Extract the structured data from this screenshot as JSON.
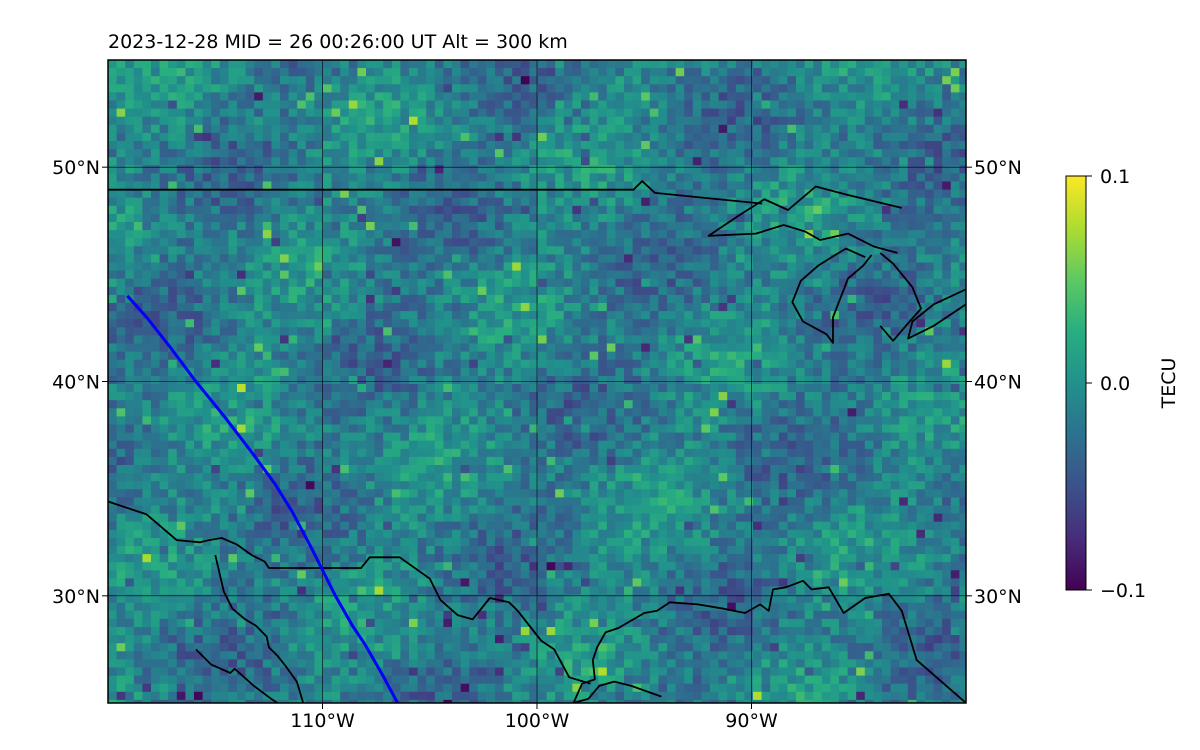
{
  "title": "2023-12-28  MID =  26    00:26:00  UT  Alt = 300 km",
  "colors": {
    "track": "#0000ff",
    "coastline": "#000000",
    "grid": "#000000",
    "cmap": [
      "#440154",
      "#472d7b",
      "#3b528b",
      "#2c728e",
      "#21918c",
      "#28ae80",
      "#5ec962",
      "#addc30",
      "#fde725"
    ]
  },
  "chart_data": {
    "type": "heatmap",
    "map_extent": {
      "lon": [
        -120,
        -80
      ],
      "lat": [
        25,
        55
      ]
    },
    "xticks": [
      {
        "value": -110,
        "label": "110°W"
      },
      {
        "value": -100,
        "label": "100°W"
      },
      {
        "value": -90,
        "label": "90°W"
      }
    ],
    "yticks": [
      {
        "value": 30,
        "label": "30°N"
      },
      {
        "value": 40,
        "label": "40°N"
      },
      {
        "value": 50,
        "label": "50°N"
      }
    ],
    "grid": true,
    "colorbar": {
      "label": "TECU",
      "range": [
        -0.1,
        0.1
      ],
      "ticks": [
        {
          "value": 0.1,
          "label": "0.1"
        },
        {
          "value": 0.0,
          "label": "0.0"
        },
        {
          "value": -0.1,
          "label": "−0.1"
        }
      ]
    },
    "track": {
      "lon": [
        -119.1,
        -118.2,
        -117.1,
        -115.9,
        -114.6,
        -113.3,
        -112.2,
        -111.4,
        -110.5,
        -109.4,
        -108.6,
        -108.0,
        -107.2,
        -106.5
      ],
      "lat": [
        44.0,
        43.0,
        41.6,
        40.0,
        38.4,
        36.7,
        35.2,
        33.9,
        32.2,
        30.0,
        28.6,
        27.7,
        26.3,
        25.0
      ]
    },
    "coastlines": [
      {
        "lon": [
          -120,
          -95.5,
          -95.1,
          -94.5,
          -89.5
        ],
        "lat": [
          48.95,
          48.95,
          49.35,
          48.8,
          48.3
        ]
      },
      {
        "lon": [
          -83.0,
          -85.5,
          -87.0,
          -88.3,
          -89.4,
          -90.5,
          -92.0,
          -89.8,
          -88.5,
          -87.5,
          -86.8,
          -85.5,
          -84.3,
          -83.2
        ],
        "lat": [
          48.1,
          48.7,
          49.1,
          48.0,
          48.5,
          47.8,
          46.8,
          46.9,
          47.3,
          47.0,
          46.6,
          46.9,
          46.3,
          46.0
        ]
      },
      {
        "lon": [
          -84.7,
          -85.6,
          -86.1,
          -86.9,
          -87.7,
          -88.1,
          -87.6,
          -86.5,
          -86.2,
          -86.2,
          -85.5,
          -84.8,
          -84.4
        ],
        "lat": [
          45.8,
          46.2,
          45.9,
          45.4,
          44.7,
          43.7,
          42.8,
          42.2,
          41.8,
          43.0,
          44.8,
          45.4,
          45.9
        ]
      },
      {
        "lon": [
          -84.0,
          -83.4,
          -82.5,
          -82.1,
          -82.8,
          -83.4,
          -84.0
        ],
        "lat": [
          46.0,
          45.5,
          44.4,
          43.4,
          42.6,
          41.9,
          42.6
        ]
      },
      {
        "lon": [
          -80.0,
          -81.5,
          -82.7,
          -82.5,
          -81.5,
          -80.0
        ],
        "lat": [
          43.6,
          42.6,
          42.0,
          42.8,
          43.6,
          44.3
        ]
      },
      {
        "lon": [
          -80.0,
          -82.3,
          -83.0,
          -83.6,
          -84.7,
          -85.7,
          -86.4,
          -87.2,
          -87.6,
          -88.4,
          -89.0,
          -89.2,
          -89.6,
          -90.3,
          -91.3,
          -92.5,
          -93.8,
          -94.4,
          -95.0,
          -96.2,
          -96.8,
          -97.2,
          -97.4,
          -97.3,
          -97.9,
          -98.3,
          -97.6,
          -97.1,
          -96.4,
          -95.6,
          -94.2
        ],
        "lat": [
          25.0,
          27.0,
          29.3,
          30.1,
          29.9,
          29.2,
          30.4,
          30.3,
          30.7,
          30.4,
          30.3,
          29.3,
          29.6,
          29.2,
          29.4,
          29.6,
          29.7,
          29.3,
          29.2,
          28.5,
          28.3,
          27.6,
          27.0,
          26.1,
          25.9,
          25.0,
          25.2,
          25.8,
          26.0,
          25.8,
          25.3
        ]
      },
      {
        "lon": [
          -120,
          -118.2,
          -116.8,
          -115.7,
          -115.3,
          -114.7,
          -114.0,
          -113.3,
          -112.7,
          -112.5,
          -111.9,
          -111.0,
          -109.9,
          -109.1,
          -108.2,
          -107.8,
          -107.4,
          -106.4,
          -105.0,
          -104.5,
          -103.7,
          -103.0,
          -102.2,
          -101.3,
          -100.9,
          -99.8,
          -99.2,
          -98.5,
          -97.5
        ],
        "lat": [
          34.4,
          33.8,
          32.6,
          32.5,
          32.6,
          32.7,
          32.4,
          31.9,
          31.6,
          31.3,
          31.3,
          31.3,
          31.3,
          31.3,
          31.3,
          31.8,
          31.8,
          31.8,
          30.8,
          29.8,
          29.1,
          28.9,
          29.9,
          29.7,
          29.3,
          27.9,
          27.5,
          26.2,
          25.9
        ]
      },
      {
        "lon": [
          -115.0,
          -114.6,
          -114.2,
          -113.6,
          -113.1,
          -112.6,
          -112.5,
          -112.1,
          -111.7,
          -111.2,
          -110.9
        ],
        "lat": [
          31.9,
          30.2,
          29.4,
          28.9,
          28.6,
          28.1,
          27.6,
          27.2,
          26.7,
          26.0,
          25.0
        ]
      },
      {
        "lon": [
          -115.9,
          -115.2,
          -114.3,
          -114.1,
          -113.2,
          -112.4,
          -112.1
        ],
        "lat": [
          27.5,
          26.8,
          26.4,
          26.6,
          25.8,
          25.2,
          25.0
        ]
      }
    ]
  }
}
